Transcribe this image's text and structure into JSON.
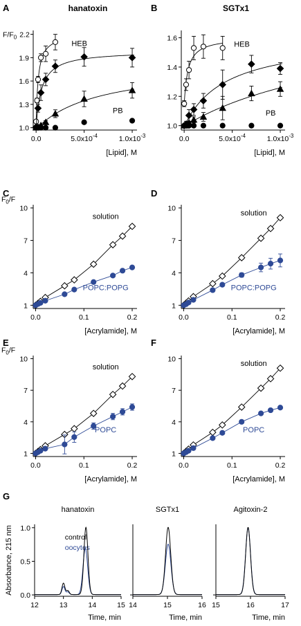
{
  "colors": {
    "black": "#000000",
    "blue": "#2e4a96",
    "open_fill": "#ffffff"
  },
  "chart_data": [
    {
      "panel": "A",
      "title": "hanatoxin",
      "type": "scatter",
      "ylabel_main": "F/F",
      "ylabel_sub": "0",
      "xlabel": "[Lipid], M",
      "xlim": [
        -3e-05,
        0.00105
      ],
      "ylim": [
        0.97,
        2.25
      ],
      "yticks": [
        1.0,
        1.3,
        1.6,
        1.9,
        2.2
      ],
      "ytick_labels": [
        "1.0",
        "1.3",
        "1.6",
        "1.9",
        "2.2"
      ],
      "xticks": [
        0,
        0.0005,
        0.001
      ],
      "xtick_labels": [
        "0.0",
        "5.0x10-4",
        "1.0x10-3"
      ],
      "series": [
        {
          "name": "HEB",
          "marker": "circle-open",
          "fit": true,
          "x": [
            0,
            1e-05,
            2e-05,
            5e-05,
            0.0001,
            0.0002
          ],
          "y": [
            1.08,
            1.35,
            1.62,
            1.9,
            1.95,
            2.1
          ],
          "err": [
            0.02,
            0.03,
            0.04,
            0.05,
            0.1,
            0.1
          ]
        },
        {
          "marker": "diamond-filled",
          "fit": true,
          "x": [
            0,
            2e-05,
            5e-05,
            0.0001,
            0.0002,
            0.0005,
            0.001
          ],
          "y": [
            1.01,
            1.25,
            1.45,
            1.62,
            1.79,
            1.91,
            1.9
          ],
          "err": [
            0.01,
            0.05,
            0.1,
            0.08,
            0.08,
            0.12,
            0.12
          ]
        },
        {
          "marker": "triangle-filled",
          "fit": true,
          "x": [
            0,
            2e-05,
            5e-05,
            0.0001,
            0.0002,
            0.0005,
            0.001
          ],
          "y": [
            1.0,
            1.01,
            1.03,
            1.07,
            1.18,
            1.37,
            1.48
          ],
          "err": [
            0.01,
            0.01,
            0.01,
            0.02,
            0.05,
            0.1,
            0.1
          ]
        },
        {
          "name": "PB",
          "marker": "circle-filled",
          "fit": false,
          "x": [
            0,
            2e-05,
            5e-05,
            0.0001,
            0.0002,
            0.0005,
            0.001
          ],
          "y": [
            1.0,
            1.0,
            1.0,
            1.0,
            1.0,
            1.07,
            1.09
          ],
          "err": [
            0.0,
            0.0,
            0.0,
            0.0,
            0.01,
            0.01,
            0.01
          ]
        }
      ],
      "labels": {
        "HEB": "HEB",
        "PB": "PB"
      }
    },
    {
      "panel": "B",
      "title": "SGTx1",
      "type": "scatter",
      "xlabel": "[Lipid], M",
      "xlim": [
        -3e-05,
        0.00105
      ],
      "ylim": [
        0.97,
        1.65
      ],
      "yticks": [
        1.0,
        1.2,
        1.4,
        1.6
      ],
      "ytick_labels": [
        "1.0",
        "1.2",
        "1.4",
        "1.6"
      ],
      "xticks": [
        0,
        0.0005,
        0.001
      ],
      "xtick_labels": [
        "0.0",
        "5.0x10-4",
        "1.0x10-3"
      ],
      "series": [
        {
          "name": "HEB",
          "marker": "circle-open",
          "fit": true,
          "x": [
            0,
            2e-05,
            5e-05,
            0.0001,
            0.0002,
            0.0004
          ],
          "y": [
            1.15,
            1.28,
            1.38,
            1.53,
            1.54,
            1.53
          ],
          "err": [
            0.02,
            0.04,
            0.06,
            0.08,
            0.08,
            0.08
          ]
        },
        {
          "marker": "diamond-filled",
          "fit": true,
          "x": [
            0,
            2e-05,
            5e-05,
            0.0001,
            0.0002,
            0.0004,
            0.0007,
            0.001
          ],
          "y": [
            1.0,
            1.01,
            1.07,
            1.11,
            1.17,
            1.28,
            1.42,
            1.39
          ],
          "err": [
            0.0,
            0.02,
            0.04,
            0.04,
            0.05,
            0.1,
            0.06,
            0.04
          ]
        },
        {
          "marker": "triangle-filled",
          "fit": true,
          "x": [
            0,
            2e-05,
            5e-05,
            0.0001,
            0.0002,
            0.0004,
            0.0007,
            0.001
          ],
          "y": [
            1.0,
            1.0,
            1.02,
            1.04,
            1.06,
            1.12,
            1.22,
            1.25
          ],
          "err": [
            0.0,
            0.01,
            0.01,
            0.02,
            0.03,
            0.08,
            0.05,
            0.05
          ]
        },
        {
          "name": "PB",
          "marker": "circle-filled",
          "fit": false,
          "x": [
            0,
            2e-05,
            5e-05,
            0.0001,
            0.0002,
            0.0004,
            0.0007,
            0.001
          ],
          "y": [
            1.0,
            1.0,
            1.0,
            1.0,
            1.0,
            1.0,
            1.0,
            1.0
          ],
          "err": [
            0.0,
            0.0,
            0.0,
            0.0,
            0.0,
            0.01,
            0.01,
            0.01
          ]
        }
      ],
      "labels": {
        "HEB": "HEB",
        "PB": "PB"
      }
    },
    {
      "panel": "C",
      "type": "line",
      "ylabel_main": "/F",
      "ylabel_pre": "F",
      "ylabel_sub": "0",
      "xlabel": "[Acrylamide], M",
      "xlim": [
        -0.005,
        0.21
      ],
      "ylim": [
        0.7,
        10.3
      ],
      "yticks": [
        1,
        4,
        7,
        10
      ],
      "xticks": [
        0.0,
        0.1,
        0.2
      ],
      "xtick_labels": [
        "0.0",
        "0.1",
        "0.2"
      ],
      "series": [
        {
          "name": "solution",
          "marker": "diamond-open",
          "color": "black",
          "x": [
            0,
            0.005,
            0.01,
            0.02,
            0.06,
            0.08,
            0.12,
            0.16,
            0.18,
            0.2
          ],
          "y": [
            1.0,
            1.18,
            1.36,
            1.72,
            2.8,
            3.35,
            4.8,
            6.6,
            7.4,
            8.3
          ],
          "err": [
            0.05,
            0.05,
            0.05,
            0.05,
            0.1,
            0.1,
            0.15,
            0.15,
            0.15,
            0.15
          ]
        },
        {
          "name": "POPC:POPG",
          "marker": "circle-filled",
          "color": "blue",
          "x": [
            0,
            0.005,
            0.01,
            0.02,
            0.06,
            0.08,
            0.12,
            0.16,
            0.18,
            0.2
          ],
          "y": [
            1.0,
            1.12,
            1.22,
            1.42,
            2.02,
            2.45,
            3.15,
            3.75,
            4.2,
            4.5
          ],
          "err": [
            0.05,
            0.05,
            0.05,
            0.05,
            0.1,
            0.1,
            0.12,
            0.12,
            0.12,
            0.15
          ]
        }
      ],
      "labels": {
        "solution": "solution",
        "other": "POPC:POPG"
      }
    },
    {
      "panel": "D",
      "type": "line",
      "xlabel": "[Acrylamide], M",
      "xlim": [
        -0.005,
        0.21
      ],
      "ylim": [
        0.7,
        10.3
      ],
      "yticks": [
        1,
        4,
        7,
        10
      ],
      "xticks": [
        0.0,
        0.1,
        0.2
      ],
      "xtick_labels": [
        "0.0",
        "0.1",
        "0.2"
      ],
      "series": [
        {
          "name": "solution",
          "marker": "diamond-open",
          "color": "black",
          "x": [
            0,
            0.005,
            0.01,
            0.02,
            0.06,
            0.08,
            0.12,
            0.16,
            0.18,
            0.2
          ],
          "y": [
            1.0,
            1.2,
            1.4,
            1.8,
            3.0,
            3.7,
            5.4,
            7.2,
            8.1,
            9.1
          ],
          "err": [
            0.05,
            0.05,
            0.05,
            0.05,
            0.1,
            0.1,
            0.15,
            0.15,
            0.15,
            0.15
          ]
        },
        {
          "name": "POPC:POPG",
          "marker": "circle-filled",
          "color": "blue",
          "x": [
            0,
            0.005,
            0.01,
            0.02,
            0.06,
            0.08,
            0.12,
            0.16,
            0.18,
            0.2
          ],
          "y": [
            1.0,
            1.1,
            1.25,
            1.5,
            2.4,
            2.9,
            3.8,
            4.5,
            4.85,
            5.15
          ],
          "err": [
            0.05,
            0.05,
            0.05,
            0.05,
            0.1,
            0.15,
            0.2,
            0.4,
            0.5,
            0.6
          ]
        }
      ],
      "labels": {
        "solution": "solution",
        "other": "POPC:POPG"
      }
    },
    {
      "panel": "E",
      "type": "line",
      "ylabel_main": "/F",
      "ylabel_pre": "F",
      "ylabel_sub": "0",
      "xlabel": "[Acrylamide], M",
      "xlim": [
        -0.005,
        0.21
      ],
      "ylim": [
        0.7,
        10.3
      ],
      "yticks": [
        1,
        4,
        7,
        10
      ],
      "xticks": [
        0.0,
        0.1,
        0.2
      ],
      "xtick_labels": [
        "0.0",
        "0.1",
        "0.2"
      ],
      "series": [
        {
          "name": "solution",
          "marker": "diamond-open",
          "color": "black",
          "x": [
            0,
            0.005,
            0.01,
            0.02,
            0.06,
            0.08,
            0.12,
            0.16,
            0.18,
            0.2
          ],
          "y": [
            1.0,
            1.18,
            1.36,
            1.72,
            2.8,
            3.35,
            4.8,
            6.6,
            7.4,
            8.3
          ],
          "err": [
            0.05,
            0.05,
            0.05,
            0.05,
            0.1,
            0.1,
            0.15,
            0.15,
            0.15,
            0.15
          ]
        },
        {
          "name": "POPC",
          "marker": "circle-filled",
          "color": "blue",
          "x": [
            0,
            0.005,
            0.01,
            0.02,
            0.06,
            0.08,
            0.12,
            0.16,
            0.18,
            0.2
          ],
          "y": [
            1.0,
            1.12,
            1.25,
            1.45,
            1.85,
            2.55,
            3.6,
            4.5,
            4.95,
            5.4
          ],
          "err": [
            0.05,
            0.05,
            0.05,
            0.05,
            0.9,
            0.5,
            0.3,
            0.3,
            0.3,
            0.3
          ]
        }
      ],
      "labels": {
        "solution": "solution",
        "other": "POPC"
      }
    },
    {
      "panel": "F",
      "type": "line",
      "xlabel": "[Acrylamide], M",
      "xlim": [
        -0.005,
        0.21
      ],
      "ylim": [
        0.7,
        10.3
      ],
      "yticks": [
        1,
        4,
        7,
        10
      ],
      "xticks": [
        0.0,
        0.1,
        0.2
      ],
      "xtick_labels": [
        "0.0",
        "0.1",
        "0.2"
      ],
      "series": [
        {
          "name": "solution",
          "marker": "diamond-open",
          "color": "black",
          "x": [
            0,
            0.005,
            0.01,
            0.02,
            0.06,
            0.08,
            0.12,
            0.16,
            0.18,
            0.2
          ],
          "y": [
            1.0,
            1.2,
            1.4,
            1.8,
            3.0,
            3.7,
            5.4,
            7.2,
            8.1,
            9.1
          ],
          "err": [
            0.05,
            0.05,
            0.05,
            0.05,
            0.1,
            0.1,
            0.15,
            0.15,
            0.15,
            0.15
          ]
        },
        {
          "name": "POPC",
          "marker": "circle-filled",
          "color": "blue",
          "x": [
            0,
            0.005,
            0.01,
            0.02,
            0.06,
            0.08,
            0.12,
            0.16,
            0.18,
            0.2
          ],
          "y": [
            1.0,
            1.12,
            1.25,
            1.5,
            2.45,
            2.95,
            4.0,
            4.8,
            5.1,
            5.35
          ],
          "err": [
            0.05,
            0.05,
            0.05,
            0.05,
            0.1,
            0.1,
            0.15,
            0.15,
            0.15,
            0.15
          ]
        }
      ],
      "labels": {
        "solution": "solution",
        "other": "POPC"
      }
    },
    {
      "panel": "G",
      "type": "line",
      "ylabel": "Absorbance, 215 nm",
      "xlabel": "Time, min",
      "ylim": [
        -0.02,
        1.05
      ],
      "yticks": [
        0.0,
        0.5,
        1.0
      ],
      "ytick_labels": [
        "0.0",
        "0.5",
        "1.0"
      ],
      "legend": {
        "control": "control",
        "oocytes": "oocytes"
      },
      "subplots": [
        {
          "title": "hanatoxin",
          "xlim": [
            12,
            15
          ],
          "xticks": [
            12,
            13,
            14,
            15
          ],
          "series": [
            {
              "name": "control",
              "color": "black",
              "peaks": [
                {
                  "x": 13.0,
                  "h": 0.17,
                  "w": 0.05
                },
                {
                  "x": 13.15,
                  "h": 0.06,
                  "w": 0.05
                },
                {
                  "x": 13.78,
                  "h": 1.0,
                  "w": 0.07
                }
              ],
              "baseline": 0.005
            },
            {
              "name": "oocytes",
              "color": "blue",
              "peaks": [
                {
                  "x": 13.0,
                  "h": 0.12,
                  "w": 0.05
                },
                {
                  "x": 13.15,
                  "h": 0.04,
                  "w": 0.05
                },
                {
                  "x": 13.76,
                  "h": 0.69,
                  "w": 0.08
                }
              ],
              "baseline": 0.005
            }
          ]
        },
        {
          "title": "SGTx1",
          "xlim": [
            14,
            16
          ],
          "xticks": [
            14,
            15,
            16
          ],
          "series": [
            {
              "name": "control",
              "color": "black",
              "peaks": [
                {
                  "x": 15.02,
                  "h": 1.0,
                  "w": 0.075
                }
              ],
              "baseline": 0.005
            },
            {
              "name": "oocytes",
              "color": "blue",
              "peaks": [
                {
                  "x": 15.02,
                  "h": 0.75,
                  "w": 0.08
                }
              ],
              "baseline": 0.005
            }
          ]
        },
        {
          "title": "Agitoxin-2",
          "xlim": [
            15,
            17
          ],
          "xticks": [
            15,
            16,
            17
          ],
          "series": [
            {
              "name": "control",
              "color": "black",
              "peaks": [
                {
                  "x": 15.93,
                  "h": 1.0,
                  "w": 0.07
                }
              ],
              "baseline": 0.005
            },
            {
              "name": "oocytes",
              "color": "blue",
              "peaks": [
                {
                  "x": 15.93,
                  "h": 0.99,
                  "w": 0.072
                }
              ],
              "baseline": 0.005
            }
          ]
        }
      ]
    }
  ]
}
